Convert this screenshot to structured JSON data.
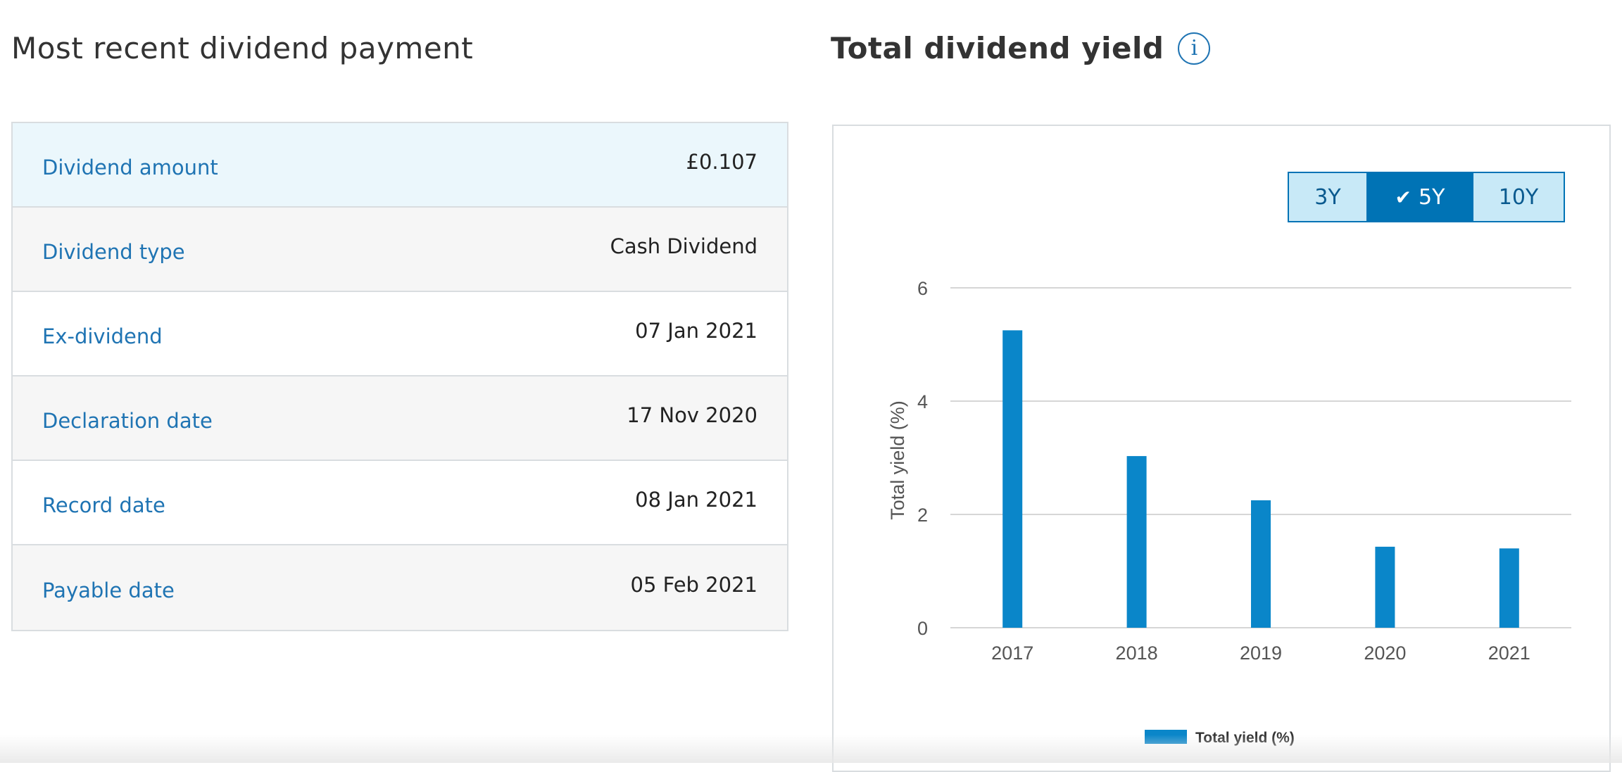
{
  "left_panel": {
    "title": "Most recent dividend payment",
    "rows": [
      {
        "label": "Dividend amount",
        "value": "£0.107"
      },
      {
        "label": "Dividend type",
        "value": "Cash Dividend"
      },
      {
        "label": "Ex-dividend",
        "value": "07 Jan 2021"
      },
      {
        "label": "Declaration date",
        "value": "17 Nov 2020"
      },
      {
        "label": "Record date",
        "value": "08 Jan 2021"
      },
      {
        "label": "Payable date",
        "value": "05 Feb 2021"
      }
    ]
  },
  "right_panel": {
    "title": "Total dividend yield",
    "info_icon": "i",
    "range_options": [
      "3Y",
      "5Y",
      "10Y"
    ],
    "selected_range": "5Y"
  },
  "colors": {
    "accent": "#0073b5",
    "label_blue": "#1f74b3",
    "bar": "#0a86c9",
    "highlight_row": "#ebf7fc",
    "grey_row": "#f6f6f6"
  },
  "chart_data": {
    "type": "bar",
    "categories": [
      "2017",
      "2018",
      "2019",
      "2020",
      "2021"
    ],
    "series": [
      {
        "name": "Total yield (%)",
        "values": [
          5.25,
          3.03,
          2.25,
          1.43,
          1.4
        ]
      }
    ],
    "ylabel": "Total yield (%)",
    "xlabel": "",
    "ylim": [
      0,
      6
    ],
    "yticks": [
      0,
      2,
      4,
      6
    ],
    "grid": true,
    "legend": "bottom-center"
  }
}
